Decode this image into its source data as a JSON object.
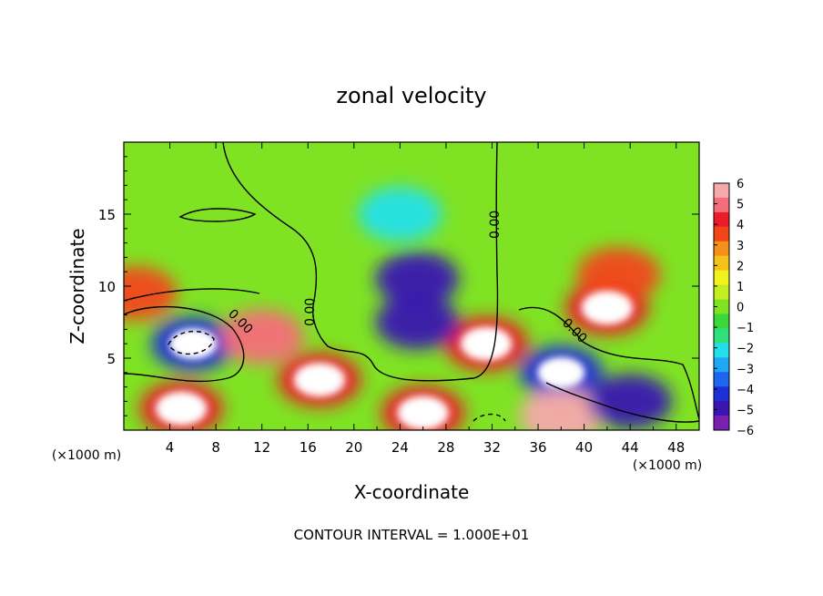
{
  "chart_data": {
    "type": "heatmap",
    "title": "zonal velocity",
    "xlabel": "X-coordinate",
    "ylabel": "Z-coordinate",
    "x_unit_left": "(×1000 m)",
    "x_unit_right": "(×1000 m)",
    "footer": "CONTOUR INTERVAL = 1.000E+01",
    "contour_label": "0.00",
    "xlim": [
      0,
      50
    ],
    "ylim": [
      0,
      20
    ],
    "x_ticks": [
      4,
      8,
      12,
      16,
      20,
      24,
      28,
      32,
      36,
      40,
      44,
      48
    ],
    "y_ticks": [
      5,
      10,
      15
    ],
    "colorbar": {
      "ticks": [
        6,
        5,
        4,
        3,
        2,
        1,
        0,
        -1,
        -2,
        -3,
        -4,
        -5,
        -6
      ],
      "range": [
        -6,
        6
      ],
      "colors": [
        "#7a1fb0",
        "#3a16b0",
        "#1f2fd6",
        "#1e66f0",
        "#1fa6f5",
        "#22e0ea",
        "#2fe07c",
        "#3bd83b",
        "#7fe324",
        "#c4ef1e",
        "#f2f21c",
        "#f5c219",
        "#f5901a",
        "#f2461a",
        "#ea1c2a",
        "#f56d7a",
        "#f7a8ad"
      ]
    },
    "features": [
      {
        "x": 25.5,
        "z": 10.5,
        "value": -5.5
      },
      {
        "x": 24,
        "z": 15,
        "value": -2
      },
      {
        "x": 6,
        "z": 6,
        "value": -6.5
      },
      {
        "x": 17,
        "z": 3.5,
        "value": 6.5
      },
      {
        "x": 12,
        "z": 6.5,
        "value": 5
      },
      {
        "x": 31.5,
        "z": 6,
        "value": 6.5
      },
      {
        "x": 42,
        "z": 8.5,
        "value": 6.5
      },
      {
        "x": 43,
        "z": 10.8,
        "value": 4
      },
      {
        "x": 38,
        "z": 4,
        "value": -6.5
      },
      {
        "x": 25.5,
        "z": 7.5,
        "value": -5
      },
      {
        "x": 5,
        "z": 1.5,
        "value": 6.5
      },
      {
        "x": 26,
        "z": 1.2,
        "value": 6.5
      },
      {
        "x": 38,
        "z": 1.0,
        "value": 6
      },
      {
        "x": 44,
        "z": 2,
        "value": -5
      },
      {
        "x": 1,
        "z": 9.5,
        "value": 4
      }
    ]
  }
}
